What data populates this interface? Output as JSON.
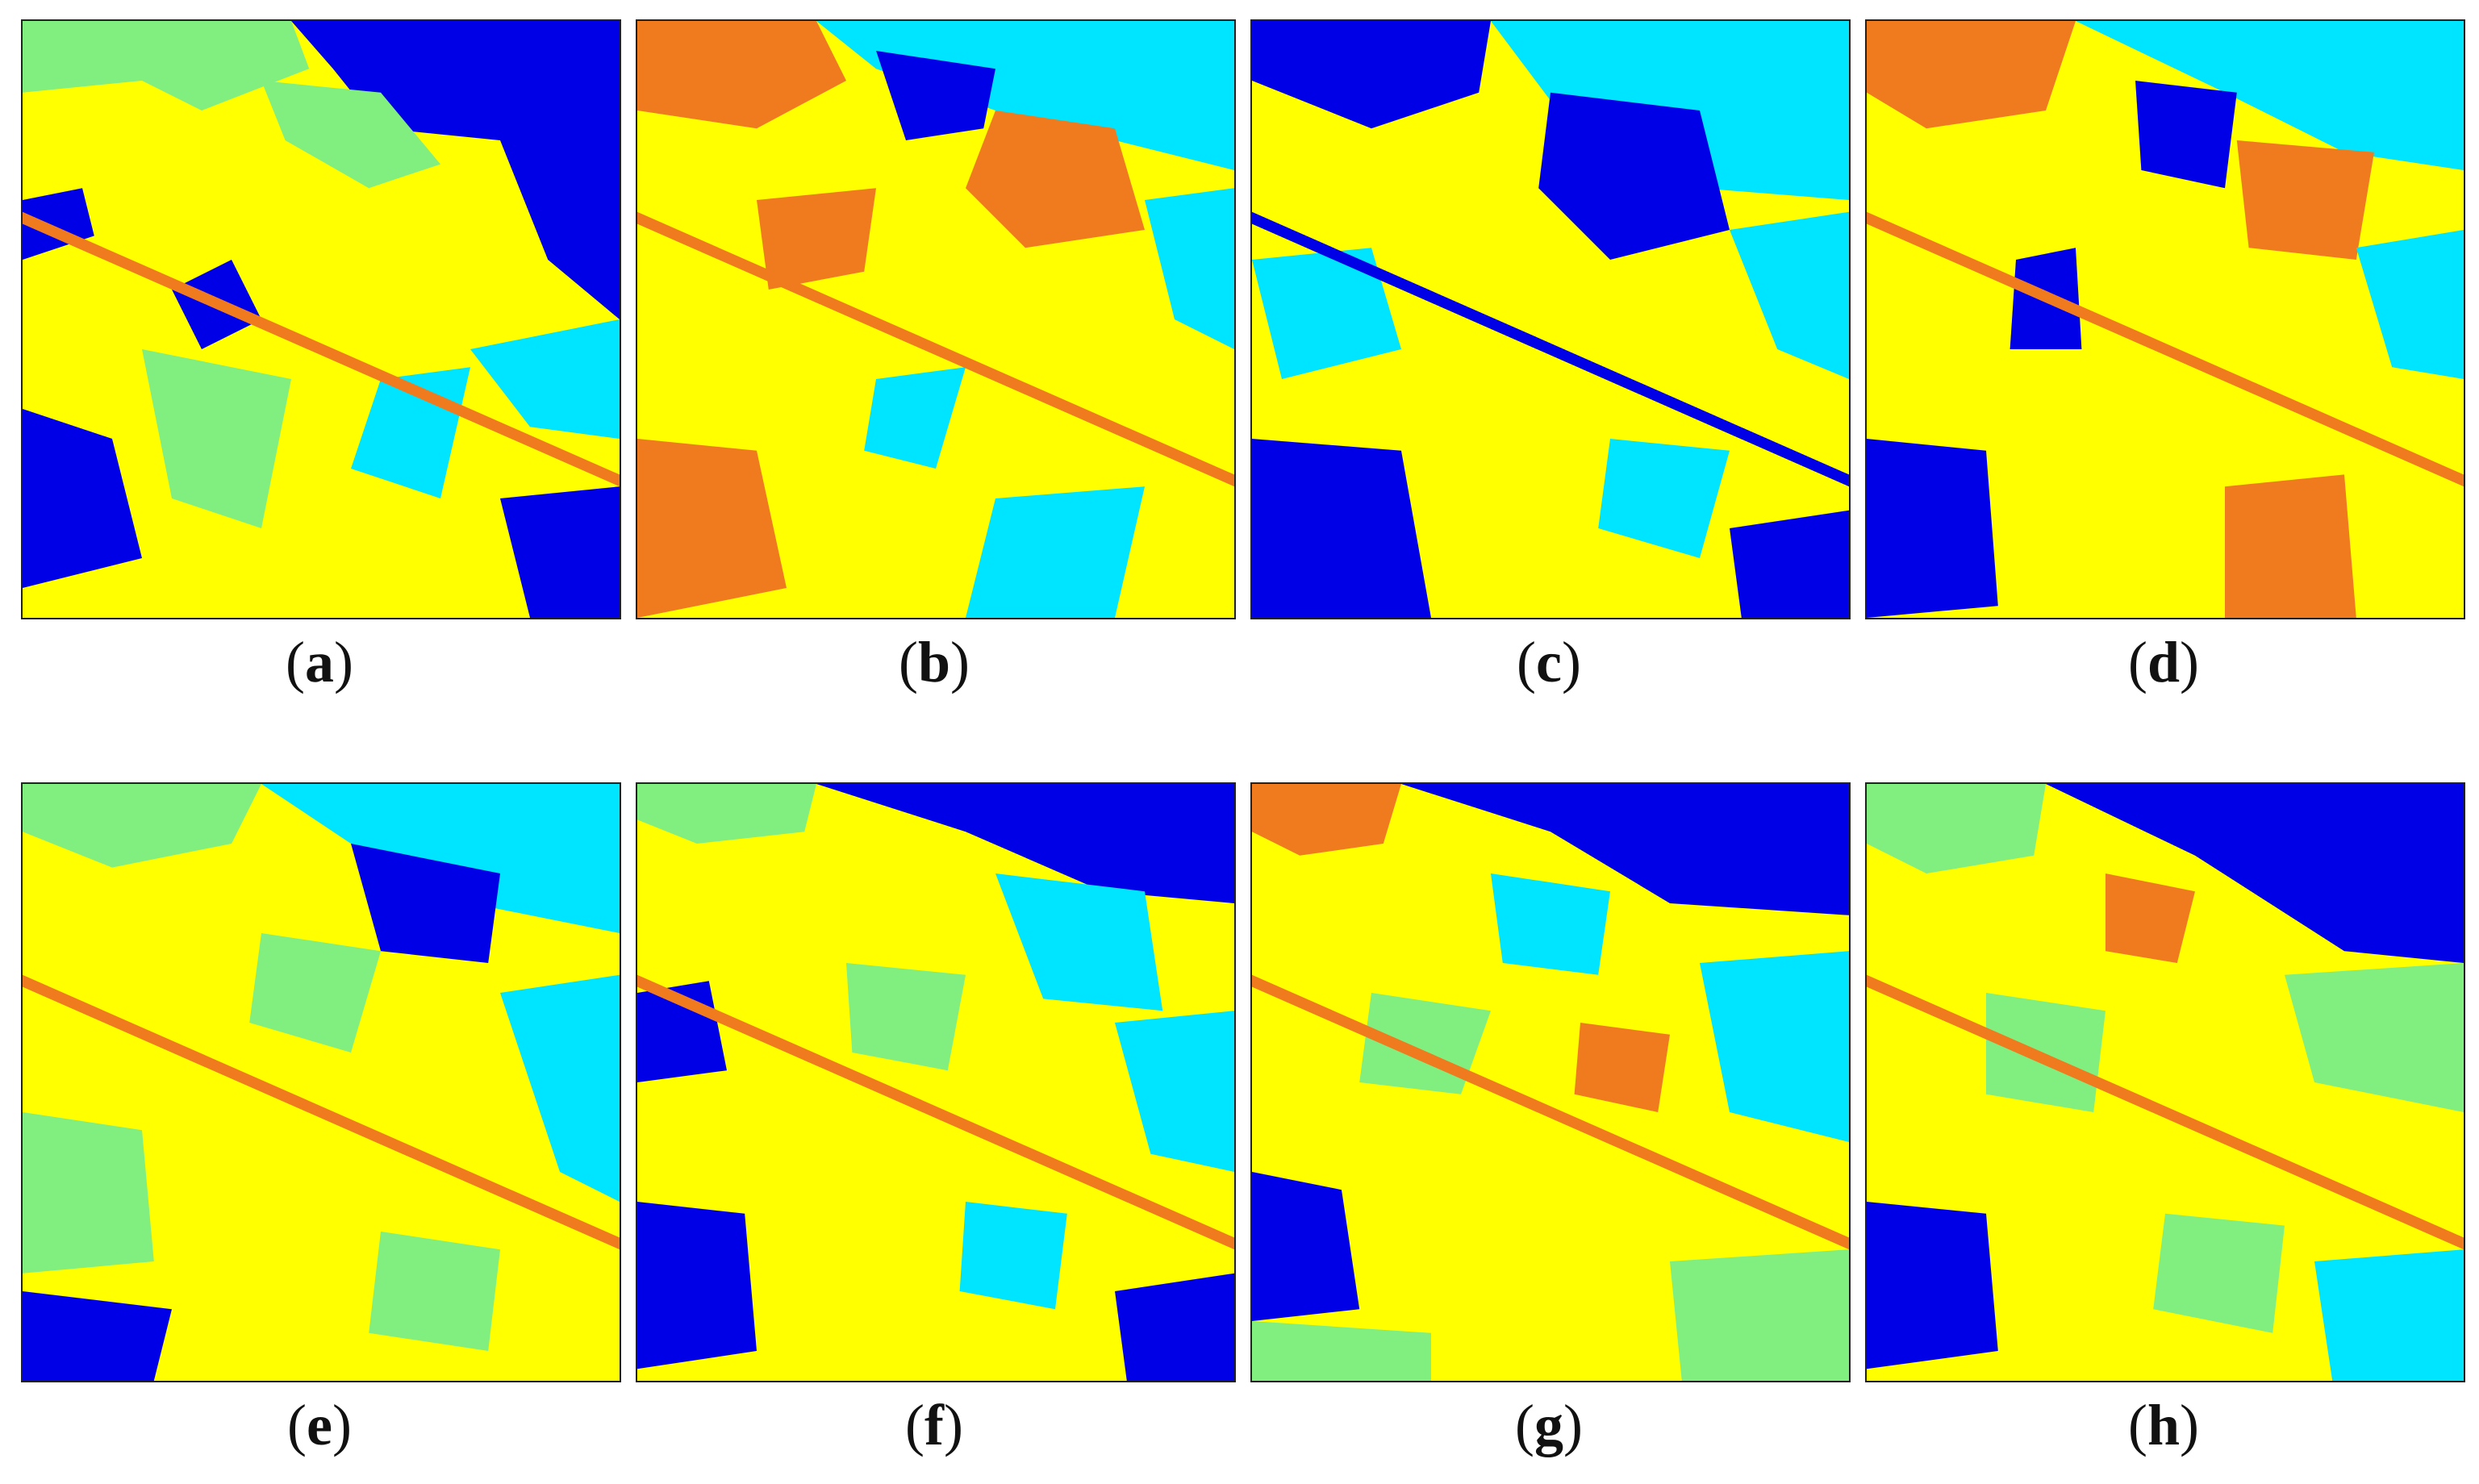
{
  "figure": {
    "panels": [
      {
        "id": "a",
        "caption_letter": "a"
      },
      {
        "id": "b",
        "caption_letter": "b"
      },
      {
        "id": "c",
        "caption_letter": "c"
      },
      {
        "id": "d",
        "caption_letter": "d"
      },
      {
        "id": "e",
        "caption_letter": "e"
      },
      {
        "id": "f",
        "caption_letter": "f"
      },
      {
        "id": "g",
        "caption_letter": "g"
      },
      {
        "id": "h",
        "caption_letter": "h"
      }
    ],
    "class_colors": {
      "yellow": "#ffff00",
      "dark_blue": "#0000e6",
      "cyan": "#00e5ff",
      "light_green": "#80ef80",
      "orange": "#f07b1e",
      "mid_blue": "#2d8cf0"
    }
  }
}
